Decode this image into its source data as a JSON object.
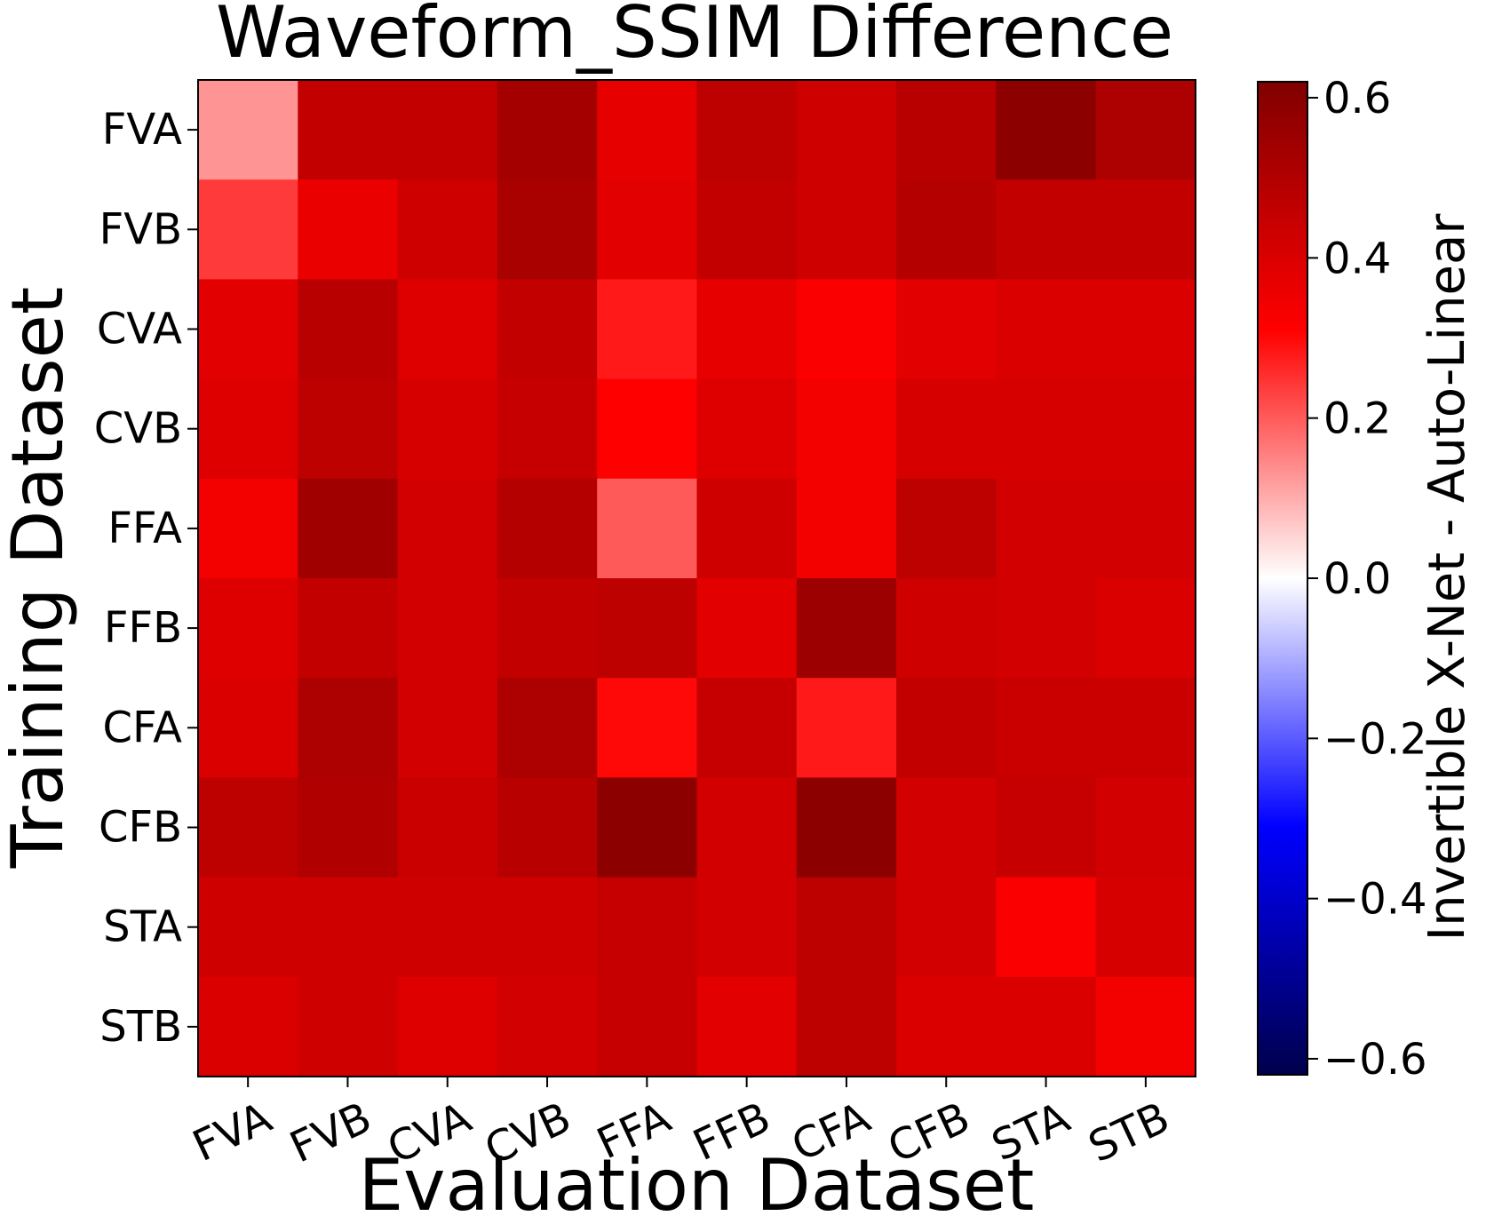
{
  "chart_data": {
    "type": "heatmap",
    "title": "Waveform_SSIM Difference",
    "xlabel": "Evaluation Dataset",
    "ylabel": "Training Dataset",
    "colorbar_label": "Invertible X-Net - Auto-Linear",
    "colormap": "seismic",
    "vmin": -0.62,
    "vmax": 0.62,
    "colorbar_ticks": [
      0.6,
      0.4,
      0.2,
      0.0,
      -0.2,
      -0.4,
      -0.6
    ],
    "colorbar_tick_labels": [
      "0.6",
      "0.4",
      "0.2",
      "0.0",
      "−0.2",
      "−0.4",
      "−0.6"
    ],
    "x_categories": [
      "FVA",
      "FVB",
      "CVA",
      "CVB",
      "FFA",
      "FFB",
      "CFA",
      "CFB",
      "STA",
      "STB"
    ],
    "y_categories": [
      "FVA",
      "FVB",
      "CVA",
      "CVB",
      "FFA",
      "FFB",
      "CFA",
      "CFB",
      "STA",
      "STB"
    ],
    "values": [
      [
        0.13,
        0.46,
        0.46,
        0.53,
        0.37,
        0.47,
        0.43,
        0.48,
        0.59,
        0.51
      ],
      [
        0.24,
        0.36,
        0.43,
        0.52,
        0.38,
        0.46,
        0.43,
        0.49,
        0.46,
        0.46
      ],
      [
        0.38,
        0.48,
        0.39,
        0.46,
        0.28,
        0.37,
        0.32,
        0.38,
        0.4,
        0.4
      ],
      [
        0.39,
        0.47,
        0.41,
        0.45,
        0.31,
        0.39,
        0.34,
        0.41,
        0.41,
        0.41
      ],
      [
        0.34,
        0.54,
        0.42,
        0.49,
        0.2,
        0.43,
        0.34,
        0.47,
        0.42,
        0.42
      ],
      [
        0.39,
        0.46,
        0.42,
        0.46,
        0.47,
        0.38,
        0.55,
        0.43,
        0.42,
        0.4
      ],
      [
        0.4,
        0.51,
        0.42,
        0.51,
        0.3,
        0.45,
        0.28,
        0.46,
        0.44,
        0.44
      ],
      [
        0.47,
        0.5,
        0.44,
        0.48,
        0.59,
        0.42,
        0.59,
        0.42,
        0.45,
        0.42
      ],
      [
        0.43,
        0.43,
        0.43,
        0.43,
        0.45,
        0.42,
        0.47,
        0.42,
        0.32,
        0.41
      ],
      [
        0.4,
        0.43,
        0.39,
        0.42,
        0.45,
        0.38,
        0.47,
        0.4,
        0.4,
        0.34
      ]
    ]
  }
}
